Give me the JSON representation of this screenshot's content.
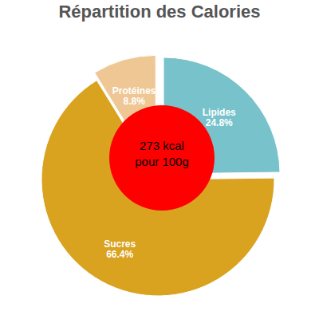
{
  "chart_data": {
    "type": "pie",
    "title": "Répartition des Calories",
    "categories": [
      "Lipides",
      "Sucres",
      "Protéines"
    ],
    "values": [
      24.8,
      66.4,
      8.8
    ],
    "value_labels": [
      "24.8%",
      "66.4%",
      "8.8%"
    ],
    "colors": [
      "#78c2cc",
      "#d9a21f",
      "#efc795"
    ],
    "data_labels": true,
    "annotations": [
      "273 kcal",
      "pour 100g"
    ]
  }
}
